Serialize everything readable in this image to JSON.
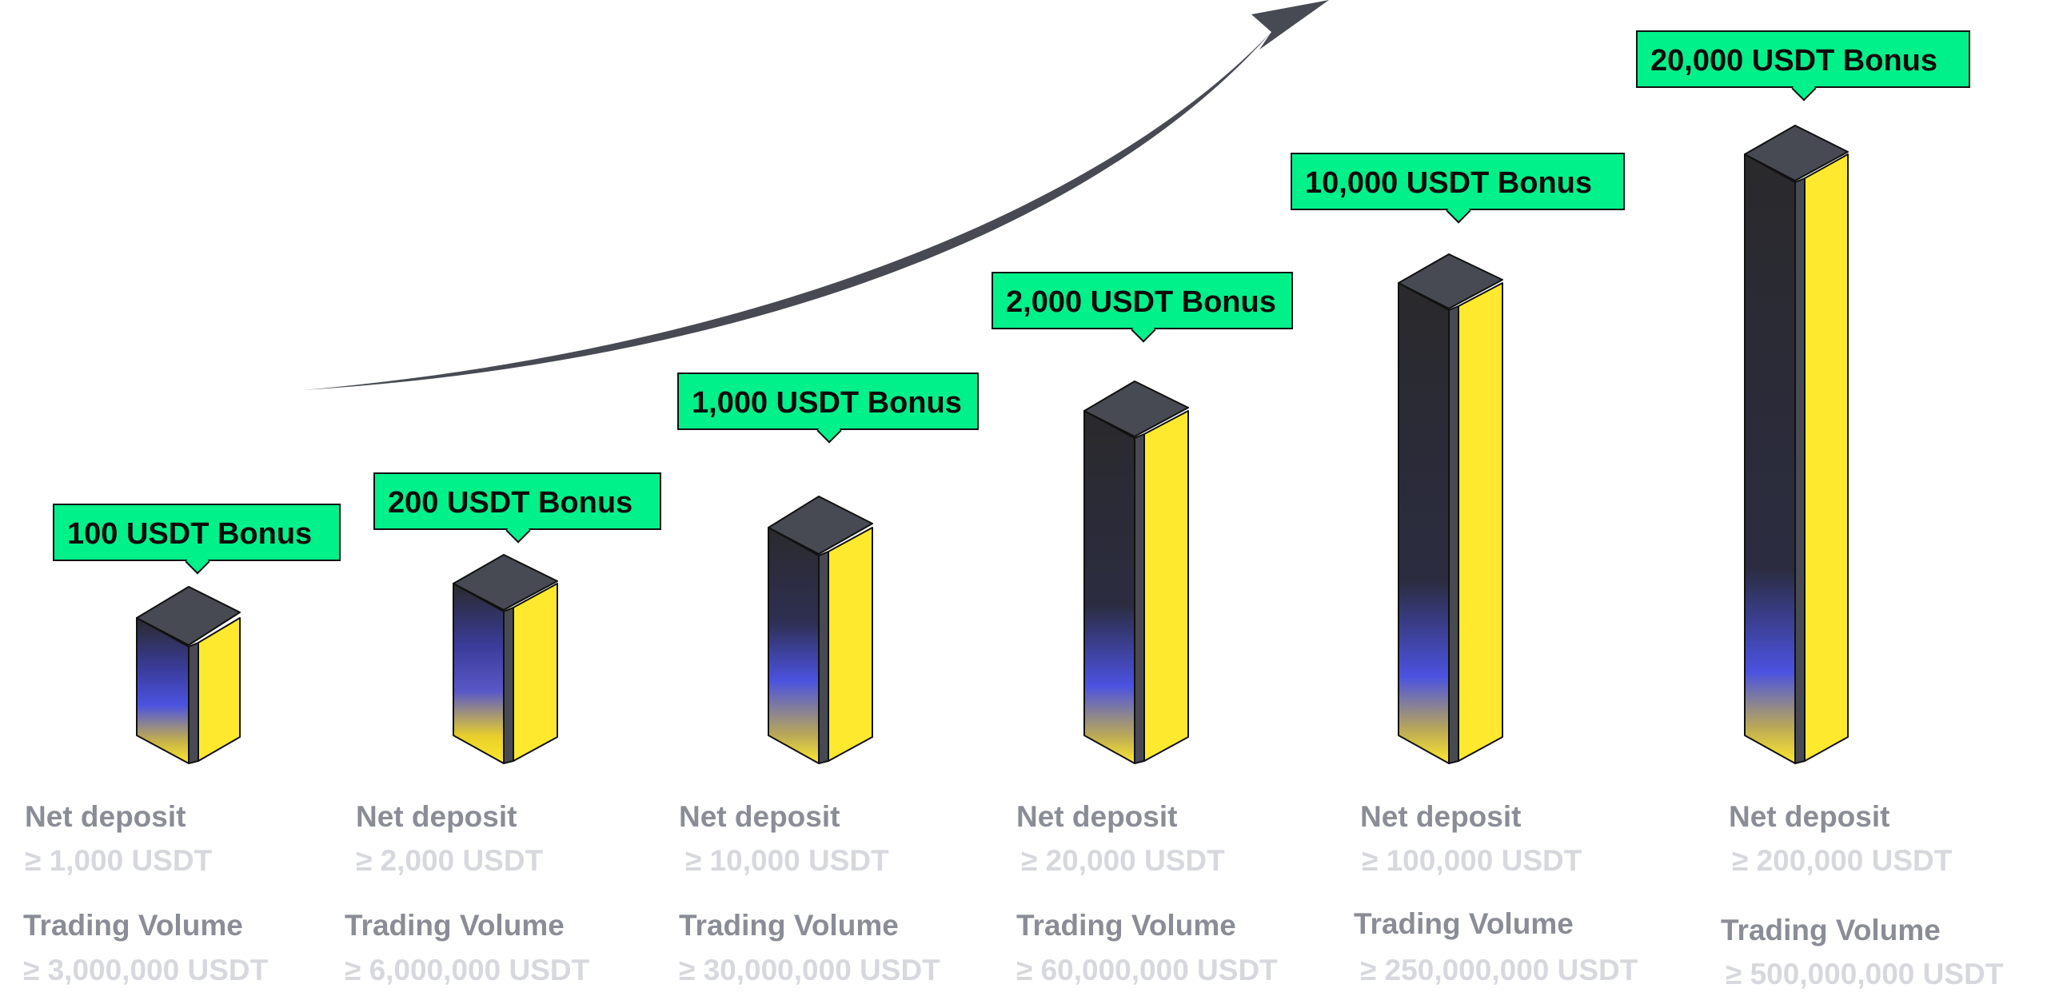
{
  "tiers": [
    {
      "bonus": "100 USDT Bonus",
      "deposit_label": "Net deposit",
      "deposit_value": "≥ 1,000 USDT",
      "volume_label": "Trading Volume",
      "volume_value": "≥ 3,000,000 USDT"
    },
    {
      "bonus": "200 USDT Bonus",
      "deposit_label": "Net deposit",
      "deposit_value": "≥ 2,000 USDT",
      "volume_label": "Trading Volume",
      "volume_value": "≥ 6,000,000 USDT"
    },
    {
      "bonus": "1,000 USDT Bonus",
      "deposit_label": "Net deposit",
      "deposit_value": "≥ 10,000 USDT",
      "volume_label": "Trading Volume",
      "volume_value": "≥ 30,000,000 USDT"
    },
    {
      "bonus": "2,000 USDT Bonus",
      "deposit_label": "Net deposit",
      "deposit_value": "≥ 20,000 USDT",
      "volume_label": "Trading Volume",
      "volume_value": "≥ 60,000,000 USDT"
    },
    {
      "bonus": "10,000 USDT Bonus",
      "deposit_label": "Net deposit",
      "deposit_value": "≥ 100,000 USDT",
      "volume_label": "Trading Volume",
      "volume_value": "≥ 250,000,000 USDT"
    },
    {
      "bonus": "20,000 USDT Bonus",
      "deposit_label": "Net deposit",
      "deposit_value": "≥ 200,000 USDT",
      "volume_label": "Trading Volume",
      "volume_value": "≥ 500,000,000 USDT"
    }
  ],
  "colors": {
    "bonus_tag": "#00f08a",
    "bar_front": "#ffe92e",
    "bar_side": "#2a2a2c",
    "bar_accent": "#4b52e0",
    "bar_top": "#474a52",
    "arrow": "#474a52",
    "label": "#8a8d96",
    "value": "#d6d8dd"
  },
  "icons": {
    "trend": "up-right-arrow-icon"
  }
}
